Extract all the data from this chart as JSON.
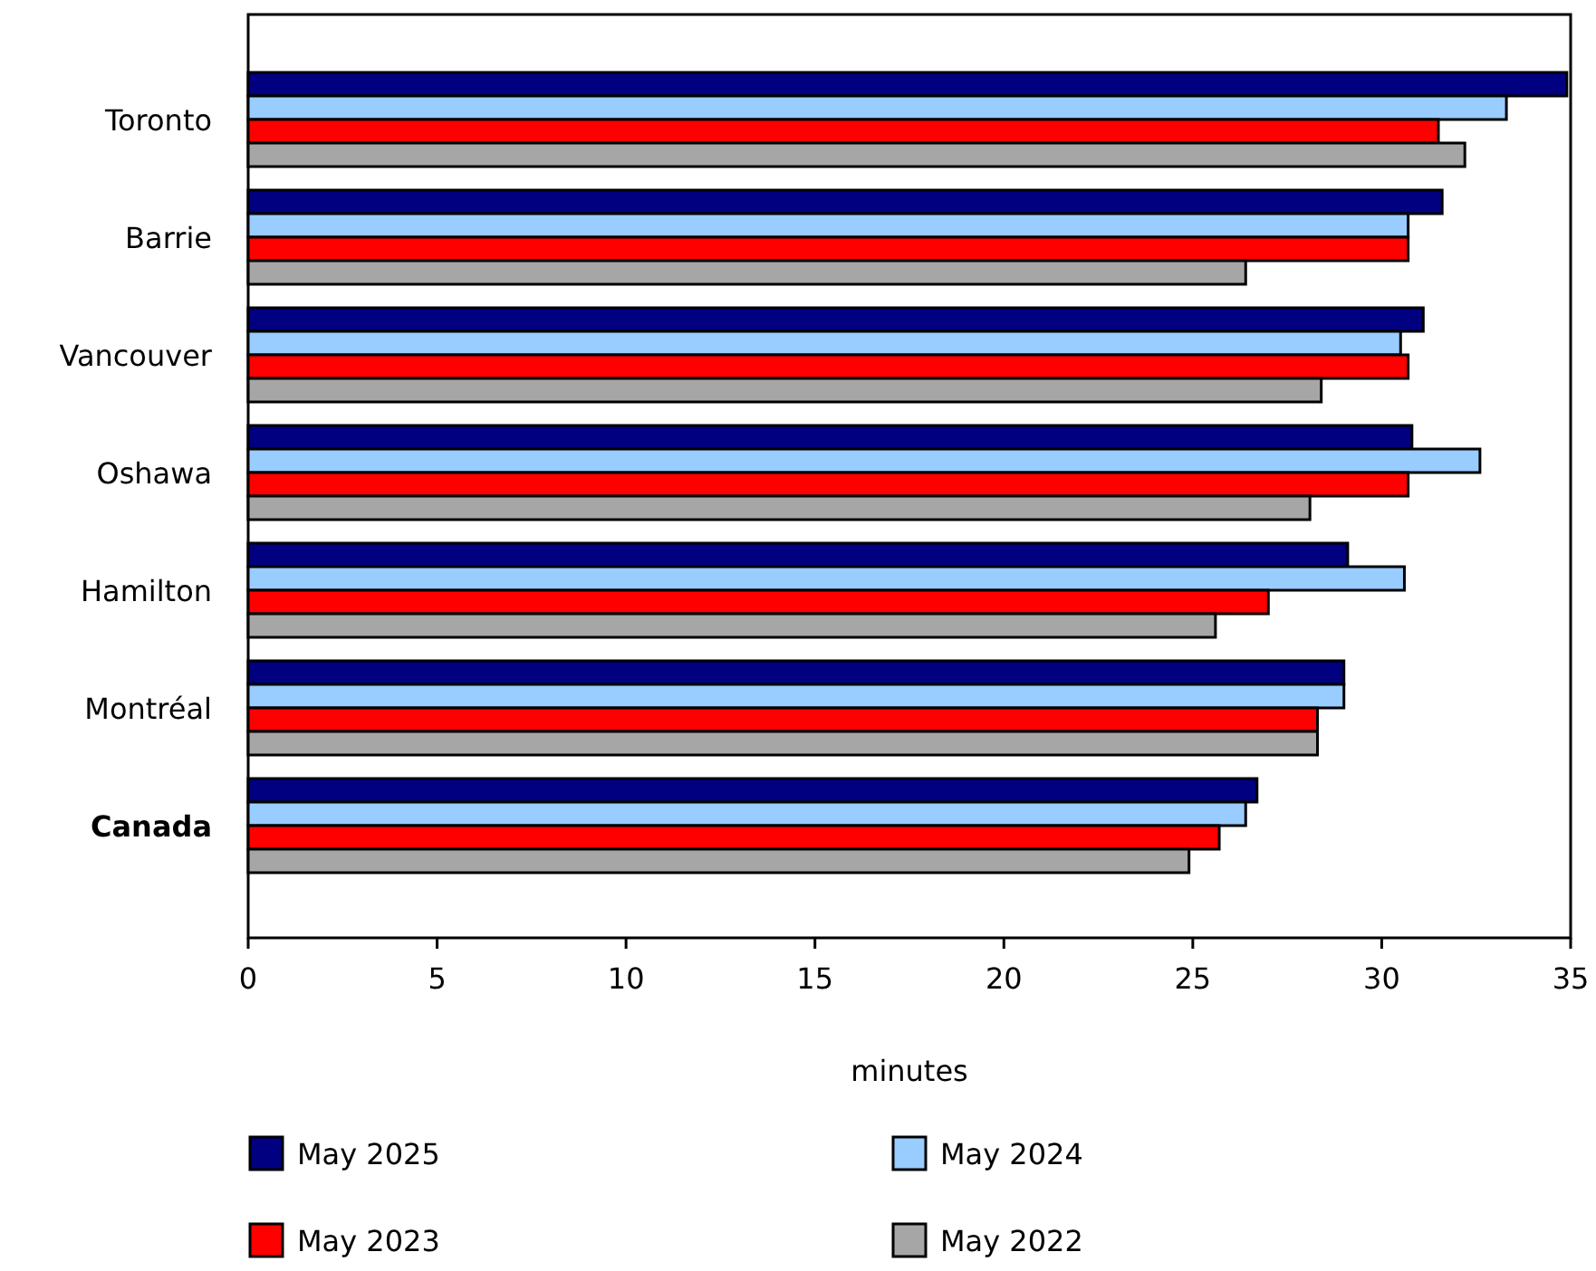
{
  "chart_data": {
    "type": "bar",
    "orientation": "horizontal",
    "xlabel": "minutes",
    "categories": [
      "Toronto",
      "Barrie",
      "Vancouver",
      "Oshawa",
      "Hamilton",
      "Montréal",
      "Canada"
    ],
    "series": [
      {
        "name": "May 2025",
        "color": "#000080",
        "values": [
          34.9,
          31.6,
          31.1,
          30.8,
          29.1,
          29.0,
          26.7
        ]
      },
      {
        "name": "May 2024",
        "color": "#99ccff",
        "values": [
          33.3,
          30.7,
          30.5,
          32.6,
          30.6,
          29.0,
          26.4
        ]
      },
      {
        "name": "May 2023",
        "color": "#ff0000",
        "values": [
          31.5,
          30.7,
          30.7,
          30.7,
          27.0,
          28.3,
          25.7
        ]
      },
      {
        "name": "May 2022",
        "color": "#a6a6a6",
        "values": [
          32.2,
          26.4,
          28.4,
          28.1,
          25.6,
          28.3,
          24.9
        ]
      }
    ],
    "xlim": [
      0,
      35
    ],
    "xticks": [
      0,
      5,
      10,
      15,
      20,
      25,
      30,
      35
    ],
    "grid": false,
    "legend": "bottom"
  }
}
